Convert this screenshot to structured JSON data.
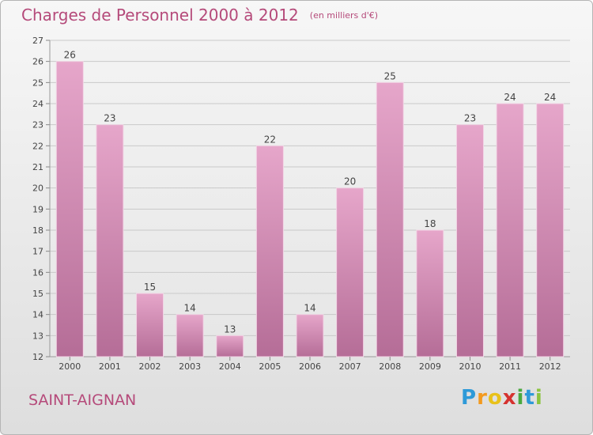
{
  "title": "Charges de Personnel 2000 à 2012",
  "unit_note": "(en milliers d'€)",
  "commune": "SAINT-AIGNAN",
  "logo": {
    "letters": [
      "P",
      "r",
      "o",
      "x",
      "i",
      "t",
      "i"
    ],
    "colors": [
      "#2e9ad8",
      "#f39a1f",
      "#e8c11a",
      "#d5322f",
      "#4aa93f",
      "#2e9ad8",
      "#8cc43f"
    ]
  },
  "colors": {
    "bar": "#d98bb7",
    "title": "#b54a7a"
  },
  "chart_data": {
    "type": "bar",
    "title": "Charges de Personnel 2000 à 2012",
    "categories": [
      "2000",
      "2001",
      "2002",
      "2003",
      "2004",
      "2005",
      "2006",
      "2007",
      "2008",
      "2009",
      "2010",
      "2011",
      "2012"
    ],
    "values": [
      26,
      23,
      15,
      14,
      13,
      22,
      14,
      20,
      25,
      18,
      23,
      24,
      24
    ],
    "ylim": [
      12,
      27
    ],
    "yticks": [
      12,
      13,
      14,
      15,
      16,
      17,
      18,
      19,
      20,
      21,
      22,
      23,
      24,
      25,
      26,
      27
    ],
    "grid": true
  }
}
